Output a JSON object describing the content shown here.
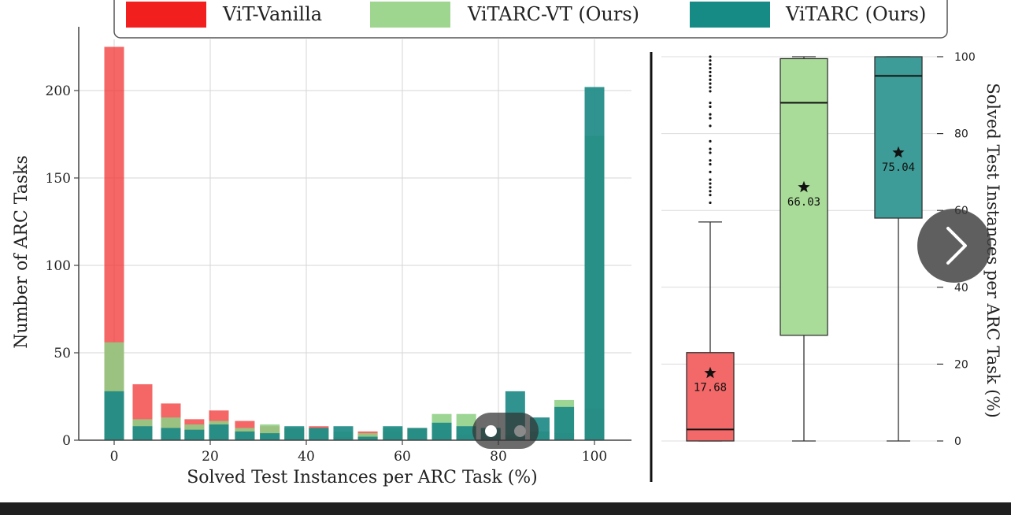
{
  "chart_data": [
    {
      "type": "bar",
      "xlabel": "Solved Test Instances per ARC Task (%)",
      "ylabel": "Number of ARC Tasks",
      "xlim": [
        -5,
        105
      ],
      "ylim": [
        0,
        225
      ],
      "xticks": [
        "0",
        "20",
        "40",
        "60",
        "80",
        "100"
      ],
      "yticks": [
        "0",
        "50",
        "100",
        "150",
        "200"
      ],
      "grid": true,
      "legend": {
        "placement": "top",
        "entries": [
          "ViT-Vanilla",
          "ViTARC-VT (Ours)",
          "ViTARC (Ours)"
        ]
      },
      "x": [
        0,
        5.9,
        11.8,
        16.7,
        21.8,
        27.2,
        32.4,
        37.5,
        42.6,
        47.7,
        52.8,
        58.0,
        63.1,
        68.2,
        73.3,
        78.4,
        83.5,
        88.6,
        93.7,
        100
      ],
      "series": [
        {
          "name": "ViT-Vanilla",
          "color": "#f23b3b",
          "values": [
            225,
            32,
            21,
            12,
            17,
            11,
            8,
            7,
            8,
            2,
            5,
            5,
            7,
            6,
            3,
            2,
            2,
            5,
            4,
            18
          ]
        },
        {
          "name": "ViTARC-VT (Ours)",
          "color": "#8fcf85",
          "values": [
            56,
            12,
            13,
            9,
            11,
            7,
            9,
            7,
            7,
            5,
            4,
            7,
            7,
            15,
            15,
            6,
            3,
            5,
            23,
            174
          ]
        },
        {
          "name": "ViTARC (Ours)",
          "color": "#1e8a85",
          "values": [
            28,
            8,
            7,
            6,
            9,
            5,
            4,
            8,
            7,
            8,
            2,
            8,
            7,
            10,
            8,
            7,
            28,
            13,
            19,
            202
          ]
        }
      ]
    },
    {
      "type": "box",
      "ylabel": "Solved Test Instances per ARC Task (%)",
      "ylim": [
        0,
        100
      ],
      "yticks": [
        "0",
        "20",
        "40",
        "60",
        "80",
        "100"
      ],
      "boxes": [
        {
          "name": "ViT-Vanilla",
          "color": "#f36868",
          "min": 0,
          "q1": 0,
          "median": 3,
          "q3": 23,
          "max": 57,
          "mean": 17.68,
          "mean_label": "17.68",
          "outliers": [
            62,
            64,
            65,
            66,
            67,
            68,
            70,
            72,
            73,
            75,
            76,
            78,
            82,
            84,
            85,
            87,
            88,
            91,
            92,
            93,
            94,
            95,
            96,
            97,
            98,
            99,
            100
          ]
        },
        {
          "name": "ViTARC-VT (Ours)",
          "color": "#a9dc98",
          "min": 0,
          "q1": 27.5,
          "median": 88,
          "q3": 99.5,
          "max": 100,
          "mean": 66.03,
          "mean_label": "66.03",
          "outliers": []
        },
        {
          "name": "ViTARC (Ours)",
          "color": "#3d9c97",
          "min": 0,
          "q1": 58,
          "median": 95,
          "q3": 100,
          "max": 100,
          "mean": 75.04,
          "mean_label": "75.04",
          "outliers": []
        }
      ]
    }
  ],
  "carousel": {
    "dot_count": 2,
    "active_dot": 0
  }
}
